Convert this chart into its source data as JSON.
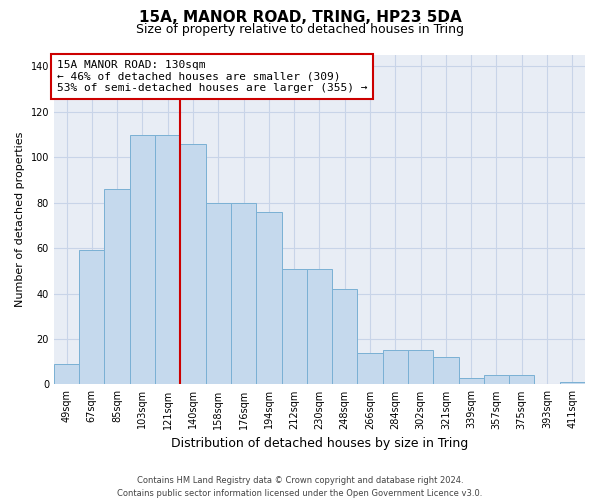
{
  "title1": "15A, MANOR ROAD, TRING, HP23 5DA",
  "title2": "Size of property relative to detached houses in Tring",
  "xlabel": "Distribution of detached houses by size in Tring",
  "ylabel": "Number of detached properties",
  "categories": [
    "49sqm",
    "67sqm",
    "85sqm",
    "103sqm",
    "121sqm",
    "140sqm",
    "158sqm",
    "176sqm",
    "194sqm",
    "212sqm",
    "230sqm",
    "248sqm",
    "266sqm",
    "284sqm",
    "302sqm",
    "321sqm",
    "339sqm",
    "357sqm",
    "375sqm",
    "393sqm",
    "411sqm"
  ],
  "values": [
    9,
    59,
    86,
    110,
    110,
    106,
    80,
    80,
    76,
    51,
    51,
    42,
    14,
    15,
    15,
    12,
    3,
    4,
    4,
    0,
    1
  ],
  "bar_color": "#c5d9ed",
  "bar_edge_color": "#7ab0d4",
  "vline_color": "#cc0000",
  "annotation_text": "15A MANOR ROAD: 130sqm\n← 46% of detached houses are smaller (309)\n53% of semi-detached houses are larger (355) →",
  "annotation_box_color": "#ffffff",
  "annotation_box_edge_color": "#cc0000",
  "ylim": [
    0,
    145
  ],
  "yticks": [
    0,
    20,
    40,
    60,
    80,
    100,
    120,
    140
  ],
  "grid_color": "#c8d4e8",
  "bg_color": "#e8edf5",
  "footer": "Contains HM Land Registry data © Crown copyright and database right 2024.\nContains public sector information licensed under the Open Government Licence v3.0.",
  "title1_fontsize": 11,
  "title2_fontsize": 9,
  "ylabel_fontsize": 8,
  "xlabel_fontsize": 9,
  "tick_fontsize": 7,
  "footer_fontsize": 6,
  "annotation_fontsize": 8
}
